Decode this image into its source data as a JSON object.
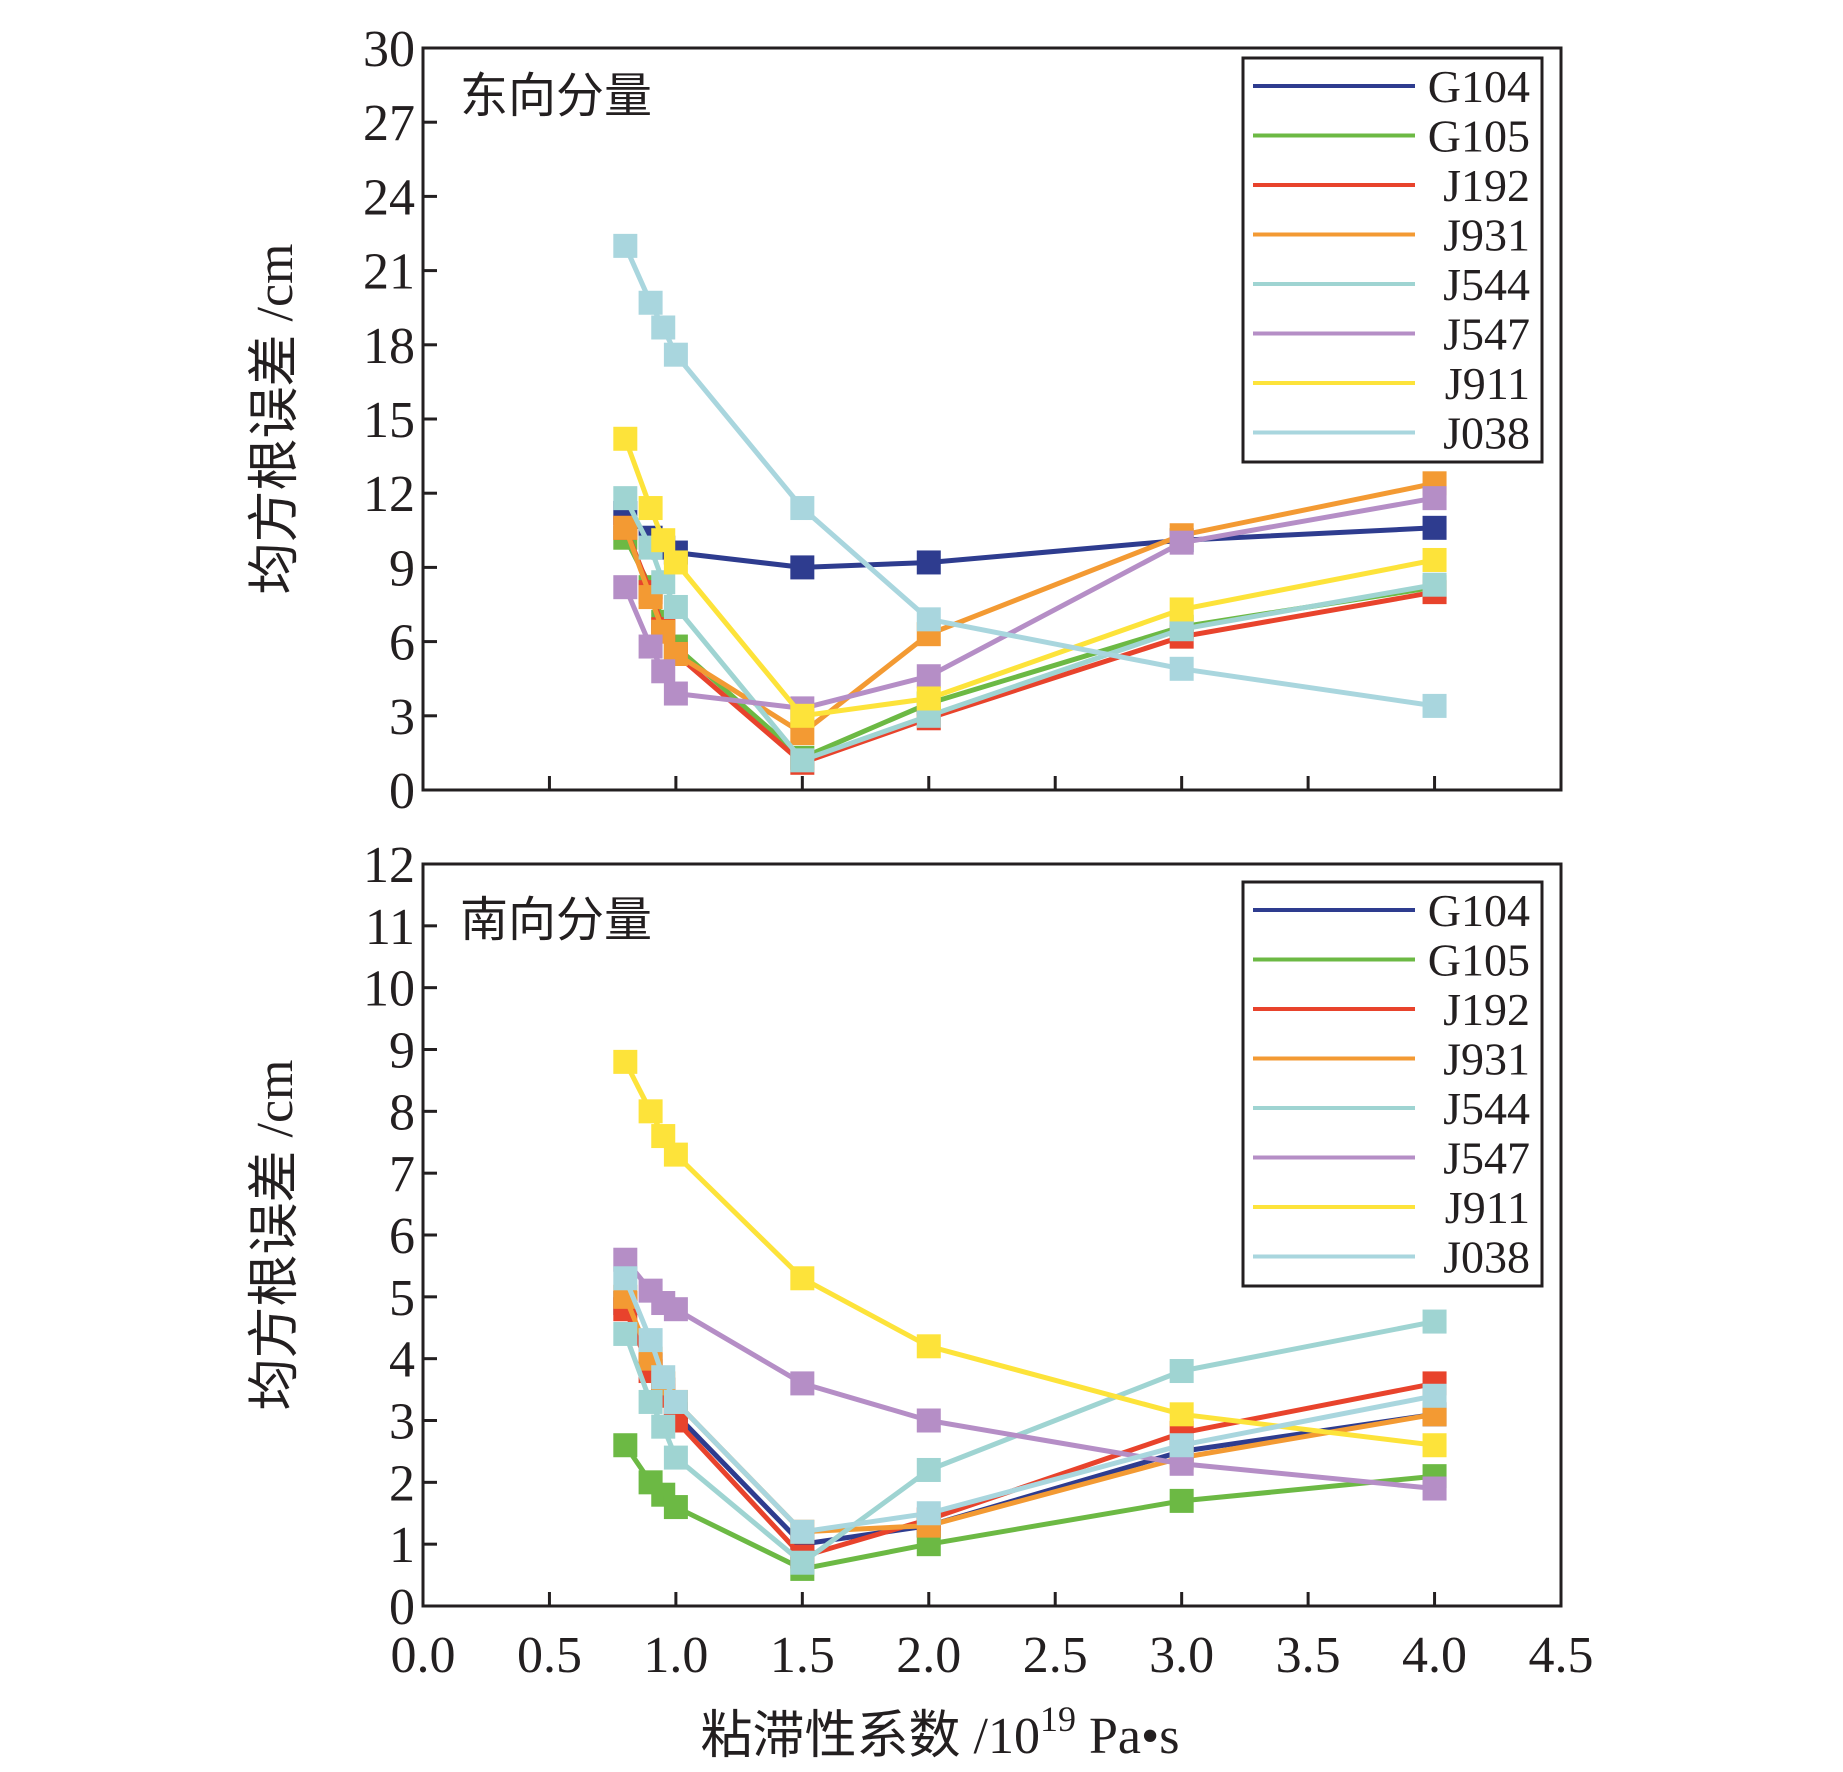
{
  "chart_data": [
    {
      "type": "line",
      "title": "东向分量",
      "xlabel": "粘滞性系数 /10^19 Pa•s",
      "ylabel": "均方根误差 /cm",
      "xlim": [
        0.0,
        4.5
      ],
      "ylim": [
        0,
        30
      ],
      "xticks": [
        0.0,
        0.5,
        1.0,
        1.5,
        2.0,
        2.5,
        3.0,
        3.5,
        4.0,
        4.5
      ],
      "yticks": [
        0,
        3,
        6,
        9,
        12,
        15,
        18,
        21,
        24,
        27,
        30
      ],
      "ytick_labels": [
        "0",
        "3",
        "6",
        "9",
        "12",
        "15",
        "18",
        "21",
        "24",
        "27",
        "30"
      ],
      "legend_position": "top-right",
      "x": [
        0.8,
        0.9,
        0.95,
        1.0,
        1.5,
        2.0,
        3.0,
        4.0
      ],
      "series": [
        {
          "name": "G104",
          "color": "#2e3c8f",
          "values": [
            11.2,
            10.2,
            9.8,
            9.6,
            9.0,
            9.2,
            10.1,
            10.6
          ]
        },
        {
          "name": "G105",
          "color": "#6cb944",
          "values": [
            10.2,
            8.2,
            6.8,
            5.8,
            1.3,
            3.5,
            6.6,
            8.2
          ]
        },
        {
          "name": "J192",
          "color": "#e8432c",
          "values": [
            10.6,
            8.0,
            6.5,
            5.5,
            1.1,
            2.9,
            6.2,
            8.0
          ]
        },
        {
          "name": "J931",
          "color": "#f39a33",
          "values": [
            10.6,
            7.8,
            6.4,
            5.5,
            2.3,
            6.3,
            10.3,
            12.4
          ]
        },
        {
          "name": "J544",
          "color": "#9fd4d2",
          "values": [
            11.8,
            9.8,
            8.4,
            7.4,
            1.2,
            3.0,
            6.5,
            8.3
          ]
        },
        {
          "name": "J547",
          "color": "#b58ec6",
          "values": [
            8.2,
            5.8,
            4.8,
            3.9,
            3.3,
            4.6,
            10.0,
            11.8
          ]
        },
        {
          "name": "J911",
          "color": "#fde33a",
          "values": [
            14.2,
            11.4,
            10.1,
            9.2,
            3.0,
            3.7,
            7.3,
            9.3
          ]
        },
        {
          "name": "J038",
          "color": "#a9d6de",
          "values": [
            22.0,
            19.7,
            18.7,
            17.6,
            11.4,
            6.9,
            4.9,
            3.4
          ]
        }
      ]
    },
    {
      "type": "line",
      "title": "南向分量",
      "xlabel": "粘滞性系数 /10^19 Pa•s",
      "ylabel": "均方根误差 /cm",
      "xlim": [
        0.0,
        4.5
      ],
      "ylim": [
        0,
        12
      ],
      "xticks": [
        0.0,
        0.5,
        1.0,
        1.5,
        2.0,
        2.5,
        3.0,
        3.5,
        4.0,
        4.5
      ],
      "xtick_labels": [
        "0.0",
        "0.5",
        "1.0",
        "1.5",
        "2.0",
        "2.5",
        "3.0",
        "3.5",
        "4.0",
        "4.5"
      ],
      "yticks": [
        0,
        1,
        2,
        3,
        4,
        5,
        6,
        7,
        8,
        9,
        10,
        11,
        12
      ],
      "ytick_labels": [
        "0",
        "1",
        "2",
        "3",
        "4",
        "5",
        "6",
        "7",
        "8",
        "9",
        "10",
        "11",
        "12"
      ],
      "legend_position": "top-right",
      "x": [
        0.8,
        0.9,
        0.95,
        1.0,
        1.5,
        2.0,
        3.0,
        4.0
      ],
      "series": [
        {
          "name": "G104",
          "color": "#2e3c8f",
          "values": [
            4.9,
            3.9,
            3.5,
            3.1,
            1.0,
            1.3,
            2.5,
            3.1
          ]
        },
        {
          "name": "G105",
          "color": "#6cb944",
          "values": [
            2.6,
            2.0,
            1.8,
            1.6,
            0.6,
            1.0,
            1.7,
            2.1
          ]
        },
        {
          "name": "J192",
          "color": "#e8432c",
          "values": [
            4.8,
            3.8,
            3.4,
            3.0,
            0.8,
            1.4,
            2.8,
            3.6
          ]
        },
        {
          "name": "J931",
          "color": "#f39a33",
          "values": [
            5.0,
            4.0,
            3.6,
            3.3,
            1.2,
            1.3,
            2.4,
            3.1
          ]
        },
        {
          "name": "J544",
          "color": "#9fd4d2",
          "values": [
            4.4,
            3.3,
            2.9,
            2.4,
            0.7,
            2.2,
            3.8,
            4.6
          ]
        },
        {
          "name": "J547",
          "color": "#b58ec6",
          "values": [
            5.6,
            5.1,
            4.9,
            4.8,
            3.6,
            3.0,
            2.3,
            1.9
          ]
        },
        {
          "name": "J911",
          "color": "#fde33a",
          "values": [
            8.8,
            8.0,
            7.6,
            7.3,
            5.3,
            4.2,
            3.1,
            2.6
          ]
        },
        {
          "name": "J038",
          "color": "#a9d6de",
          "values": [
            5.3,
            4.3,
            3.7,
            3.3,
            1.2,
            1.5,
            2.6,
            3.4
          ]
        }
      ]
    }
  ],
  "x_axis_title": {
    "prefix": "粘滞性系数 /10",
    "exponent": "19",
    "suffix": " Pa•s"
  }
}
